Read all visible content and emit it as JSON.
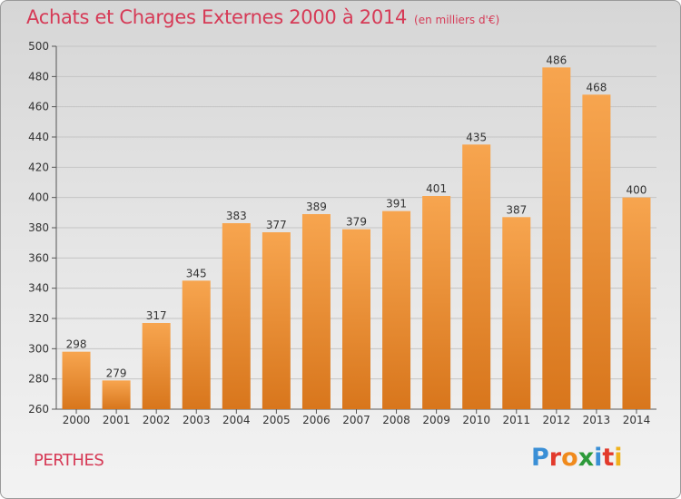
{
  "header": {
    "title": "Achats et Charges Externes 2000 à 2014",
    "unit": "(en milliers d'€)"
  },
  "footer": {
    "town": "PERTHES",
    "logo_text": "Proxiti"
  },
  "colors": {
    "title": "#d63a56",
    "bar_light": "#f7a54f",
    "bar_dark": "#d8761c",
    "logo": [
      "#3a8fd6",
      "#e23a2c",
      "#f08a1c",
      "#2d9a3a",
      "#3a8fd6",
      "#e23a2c",
      "#f0b21c"
    ]
  },
  "chart_data": {
    "type": "bar",
    "title": "Achats et Charges Externes 2000 à 2014",
    "subtitle": "(en milliers d'€)",
    "categories": [
      "2000",
      "2001",
      "2002",
      "2003",
      "2004",
      "2005",
      "2006",
      "2007",
      "2008",
      "2009",
      "2010",
      "2011",
      "2012",
      "2013",
      "2014"
    ],
    "values": [
      298,
      279,
      317,
      345,
      383,
      377,
      389,
      379,
      391,
      401,
      435,
      387,
      486,
      468,
      400
    ],
    "ylim": [
      260,
      500
    ],
    "yticks": [
      260,
      280,
      300,
      320,
      340,
      360,
      380,
      400,
      420,
      440,
      460,
      480,
      500
    ],
    "grid": true,
    "legend": "none"
  }
}
